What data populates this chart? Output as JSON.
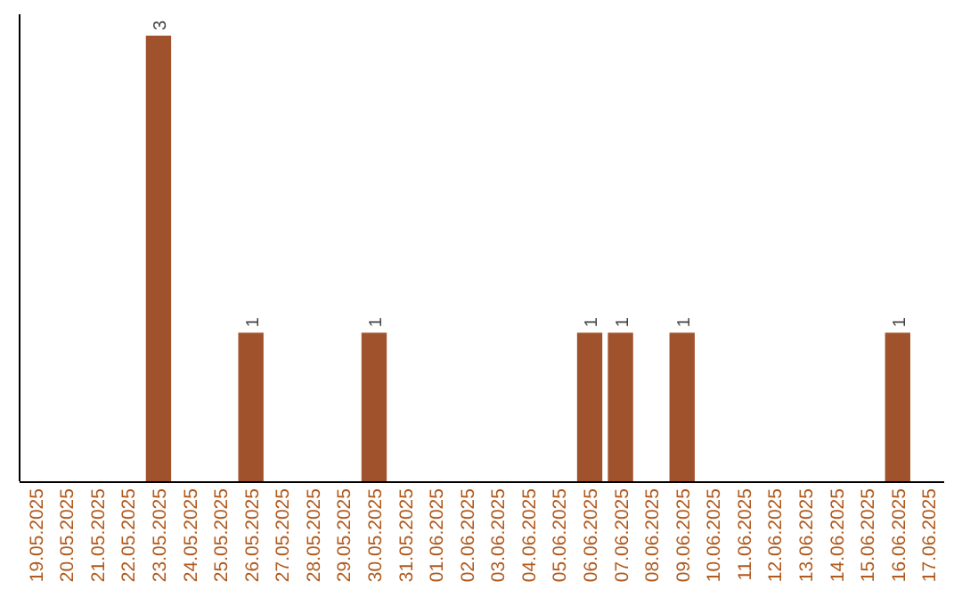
{
  "chart_data": {
    "type": "bar",
    "categories": [
      "19.05.2025",
      "20.05.2025",
      "21.05.2025",
      "22.05.2025",
      "23.05.2025",
      "24.05.2025",
      "25.05.2025",
      "26.05.2025",
      "27.05.2025",
      "28.05.2025",
      "29.05.2025",
      "30.05.2025",
      "31.05.2025",
      "01.06.2025",
      "02.06.2025",
      "03.06.2025",
      "04.06.2025",
      "05.06.2025",
      "06.06.2025",
      "07.06.2025",
      "08.06.2025",
      "09.06.2025",
      "10.06.2025",
      "11.06.2025",
      "12.06.2025",
      "13.06.2025",
      "14.06.2025",
      "15.06.2025",
      "16.06.2025",
      "17.06.2025"
    ],
    "values": [
      0,
      0,
      0,
      0,
      3,
      0,
      0,
      1,
      0,
      0,
      0,
      1,
      0,
      0,
      0,
      0,
      0,
      0,
      1,
      1,
      0,
      1,
      0,
      0,
      0,
      0,
      0,
      0,
      1,
      0
    ],
    "value_labels": [
      null,
      null,
      null,
      null,
      "3",
      null,
      null,
      "1",
      null,
      null,
      null,
      "1",
      null,
      null,
      null,
      null,
      null,
      null,
      "1",
      "1",
      null,
      "1",
      null,
      null,
      null,
      null,
      null,
      null,
      "1",
      null
    ],
    "color": "#a0522d",
    "tick_labels": "x"
  }
}
